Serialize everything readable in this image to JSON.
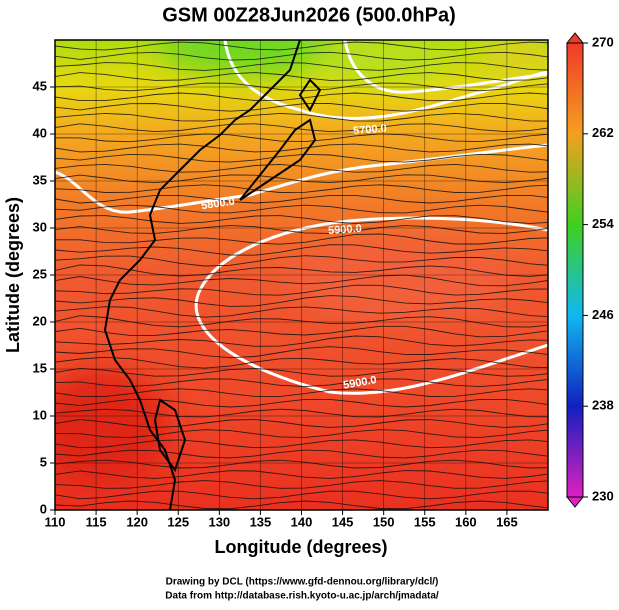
{
  "chart_data": {
    "type": "map",
    "title": "GSM 00Z28Jun2026 (500.0hPa)",
    "xlabel": "Longitude (degrees)",
    "ylabel": "Latitude  (degrees)",
    "xlim": [
      110,
      170
    ],
    "xticks": [
      110,
      115,
      120,
      125,
      130,
      135,
      140,
      145,
      150,
      155,
      160,
      165
    ],
    "ylim": [
      0,
      50
    ],
    "yticks": [
      0,
      5,
      10,
      15,
      20,
      25,
      30,
      35,
      40,
      45
    ],
    "grid": true,
    "colorbar": {
      "lim": [
        230,
        270
      ],
      "ticks": [
        230,
        238,
        246,
        254,
        262,
        270
      ]
    },
    "contour_labels": [
      "5700.0",
      "5800.0",
      "5900.0",
      "5900.0"
    ],
    "credits": [
      "Drawing by DCL (https://www.gfd-dennou.org/library/dcl/)",
      "Data from http://database.rish.kyoto-u.ac.jp/arch/jmadata/"
    ]
  }
}
